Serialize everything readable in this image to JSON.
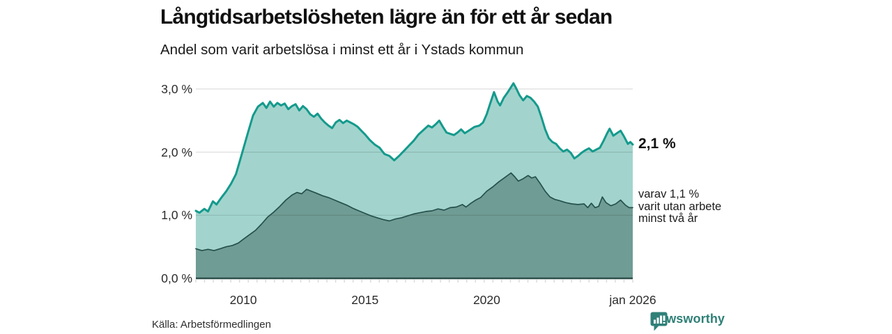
{
  "header": {
    "title": "Långtidsarbetslösheten lägre än för ett år sedan",
    "subtitle": "Andel som varit arbetslösa i minst ett år i Ystads kommun"
  },
  "annotations": {
    "end_value": "2,1 %",
    "note": "varav 1,1 %\nvarit utan arbete\nminst två år"
  },
  "footer": {
    "source": "Källa: Arbetsförmedlingen",
    "brand": "Newsworthy"
  },
  "colors": {
    "line_1yr": "#149a8c",
    "fill_1yr": "#a2d4cd",
    "line_2yr": "#26504c",
    "fill_2yr": "#6f9c94",
    "gridline": "rgba(0,0,0,0.13)",
    "axis_line": "#2e4f4b",
    "minor_tick": "#d9d9d9",
    "brand_teal": "#2f8077"
  },
  "chart_data": {
    "type": "area",
    "title": "Långtidsarbetslösheten lägre än för ett år sedan",
    "subtitle": "Andel som varit arbetslösa i minst ett år i Ystads kommun",
    "unit": "%",
    "grid": "horizontal",
    "legend_position": "right-annotations",
    "xlim": [
      2008.05,
      2026.0
    ],
    "ylim": [
      0,
      3.3
    ],
    "y_ticks": [
      {
        "value": 0,
        "label": "0,0 %"
      },
      {
        "value": 1,
        "label": "1,0 %"
      },
      {
        "value": 2,
        "label": "2,0 %"
      },
      {
        "value": 3,
        "label": "3,0 %"
      }
    ],
    "x_ticks": [
      {
        "value": 2010,
        "label": "2010"
      },
      {
        "value": 2015,
        "label": "2015"
      },
      {
        "value": 2020,
        "label": "2020"
      },
      {
        "value": 2026,
        "label": "jan 2026"
      }
    ],
    "series": [
      {
        "name": "Arbetslösa minst ett år",
        "end_label": "2,1 %",
        "end_value": 2.1,
        "color": "#149a8c",
        "fill": "#a2d4cd",
        "points": [
          [
            2008.05,
            1.07
          ],
          [
            2008.2,
            1.04
          ],
          [
            2008.4,
            1.1
          ],
          [
            2008.55,
            1.06
          ],
          [
            2008.75,
            1.22
          ],
          [
            2008.9,
            1.17
          ],
          [
            2009.1,
            1.28
          ],
          [
            2009.3,
            1.38
          ],
          [
            2009.5,
            1.5
          ],
          [
            2009.7,
            1.65
          ],
          [
            2009.85,
            1.85
          ],
          [
            2010.0,
            2.05
          ],
          [
            2010.2,
            2.32
          ],
          [
            2010.4,
            2.58
          ],
          [
            2010.6,
            2.72
          ],
          [
            2010.8,
            2.78
          ],
          [
            2010.95,
            2.7
          ],
          [
            2011.1,
            2.8
          ],
          [
            2011.25,
            2.72
          ],
          [
            2011.4,
            2.78
          ],
          [
            2011.55,
            2.74
          ],
          [
            2011.7,
            2.77
          ],
          [
            2011.85,
            2.68
          ],
          [
            2012.0,
            2.73
          ],
          [
            2012.15,
            2.76
          ],
          [
            2012.3,
            2.66
          ],
          [
            2012.45,
            2.73
          ],
          [
            2012.6,
            2.68
          ],
          [
            2012.75,
            2.6
          ],
          [
            2012.9,
            2.56
          ],
          [
            2013.05,
            2.61
          ],
          [
            2013.2,
            2.53
          ],
          [
            2013.35,
            2.47
          ],
          [
            2013.5,
            2.42
          ],
          [
            2013.65,
            2.38
          ],
          [
            2013.8,
            2.47
          ],
          [
            2013.95,
            2.51
          ],
          [
            2014.1,
            2.46
          ],
          [
            2014.25,
            2.5
          ],
          [
            2014.4,
            2.47
          ],
          [
            2014.55,
            2.44
          ],
          [
            2014.7,
            2.4
          ],
          [
            2014.85,
            2.34
          ],
          [
            2015.0,
            2.28
          ],
          [
            2015.2,
            2.19
          ],
          [
            2015.4,
            2.12
          ],
          [
            2015.6,
            2.07
          ],
          [
            2015.8,
            1.97
          ],
          [
            2016.0,
            1.94
          ],
          [
            2016.2,
            1.87
          ],
          [
            2016.4,
            1.94
          ],
          [
            2016.6,
            2.02
          ],
          [
            2016.8,
            2.1
          ],
          [
            2017.0,
            2.18
          ],
          [
            2017.2,
            2.28
          ],
          [
            2017.4,
            2.35
          ],
          [
            2017.6,
            2.42
          ],
          [
            2017.75,
            2.39
          ],
          [
            2017.9,
            2.44
          ],
          [
            2018.05,
            2.5
          ],
          [
            2018.2,
            2.4
          ],
          [
            2018.35,
            2.31
          ],
          [
            2018.5,
            2.29
          ],
          [
            2018.65,
            2.27
          ],
          [
            2018.8,
            2.31
          ],
          [
            2018.95,
            2.36
          ],
          [
            2019.1,
            2.3
          ],
          [
            2019.3,
            2.35
          ],
          [
            2019.5,
            2.4
          ],
          [
            2019.7,
            2.42
          ],
          [
            2019.85,
            2.47
          ],
          [
            2020.0,
            2.6
          ],
          [
            2020.15,
            2.78
          ],
          [
            2020.3,
            2.95
          ],
          [
            2020.45,
            2.8
          ],
          [
            2020.55,
            2.74
          ],
          [
            2020.7,
            2.86
          ],
          [
            2020.85,
            2.94
          ],
          [
            2021.0,
            3.03
          ],
          [
            2021.1,
            3.09
          ],
          [
            2021.2,
            3.02
          ],
          [
            2021.35,
            2.9
          ],
          [
            2021.5,
            2.82
          ],
          [
            2021.65,
            2.89
          ],
          [
            2021.8,
            2.86
          ],
          [
            2021.95,
            2.8
          ],
          [
            2022.1,
            2.72
          ],
          [
            2022.25,
            2.55
          ],
          [
            2022.4,
            2.36
          ],
          [
            2022.55,
            2.22
          ],
          [
            2022.7,
            2.16
          ],
          [
            2022.85,
            2.13
          ],
          [
            2023.0,
            2.06
          ],
          [
            2023.15,
            2.01
          ],
          [
            2023.3,
            2.04
          ],
          [
            2023.45,
            1.99
          ],
          [
            2023.6,
            1.9
          ],
          [
            2023.75,
            1.94
          ],
          [
            2023.9,
            1.99
          ],
          [
            2024.05,
            2.03
          ],
          [
            2024.2,
            2.06
          ],
          [
            2024.35,
            2.01
          ],
          [
            2024.5,
            2.04
          ],
          [
            2024.65,
            2.07
          ],
          [
            2024.8,
            2.18
          ],
          [
            2024.95,
            2.3
          ],
          [
            2025.05,
            2.37
          ],
          [
            2025.2,
            2.26
          ],
          [
            2025.35,
            2.3
          ],
          [
            2025.5,
            2.34
          ],
          [
            2025.65,
            2.24
          ],
          [
            2025.8,
            2.13
          ],
          [
            2025.9,
            2.16
          ],
          [
            2026.0,
            2.12
          ]
        ]
      },
      {
        "name": "Utan arbete minst två år",
        "end_label": "1,1 %",
        "end_value": 1.1,
        "color": "#26504c",
        "fill": "#6f9c94",
        "points": [
          [
            2008.05,
            0.47
          ],
          [
            2008.3,
            0.44
          ],
          [
            2008.55,
            0.46
          ],
          [
            2008.8,
            0.44
          ],
          [
            2009.05,
            0.47
          ],
          [
            2009.3,
            0.5
          ],
          [
            2009.55,
            0.52
          ],
          [
            2009.8,
            0.56
          ],
          [
            2010.0,
            0.62
          ],
          [
            2010.25,
            0.69
          ],
          [
            2010.5,
            0.76
          ],
          [
            2010.75,
            0.86
          ],
          [
            2011.0,
            0.97
          ],
          [
            2011.25,
            1.05
          ],
          [
            2011.5,
            1.14
          ],
          [
            2011.75,
            1.24
          ],
          [
            2012.0,
            1.32
          ],
          [
            2012.2,
            1.36
          ],
          [
            2012.4,
            1.34
          ],
          [
            2012.6,
            1.41
          ],
          [
            2012.8,
            1.38
          ],
          [
            2013.0,
            1.35
          ],
          [
            2013.25,
            1.31
          ],
          [
            2013.5,
            1.28
          ],
          [
            2013.75,
            1.24
          ],
          [
            2014.0,
            1.2
          ],
          [
            2014.25,
            1.16
          ],
          [
            2014.5,
            1.11
          ],
          [
            2014.75,
            1.07
          ],
          [
            2015.0,
            1.03
          ],
          [
            2015.25,
            0.99
          ],
          [
            2015.5,
            0.96
          ],
          [
            2015.75,
            0.93
          ],
          [
            2016.0,
            0.91
          ],
          [
            2016.25,
            0.94
          ],
          [
            2016.5,
            0.96
          ],
          [
            2016.75,
            0.99
          ],
          [
            2017.0,
            1.02
          ],
          [
            2017.25,
            1.04
          ],
          [
            2017.5,
            1.06
          ],
          [
            2017.75,
            1.07
          ],
          [
            2018.0,
            1.1
          ],
          [
            2018.25,
            1.08
          ],
          [
            2018.5,
            1.12
          ],
          [
            2018.75,
            1.13
          ],
          [
            2019.0,
            1.17
          ],
          [
            2019.15,
            1.13
          ],
          [
            2019.35,
            1.19
          ],
          [
            2019.55,
            1.24
          ],
          [
            2019.75,
            1.28
          ],
          [
            2020.0,
            1.38
          ],
          [
            2020.25,
            1.45
          ],
          [
            2020.5,
            1.53
          ],
          [
            2020.75,
            1.6
          ],
          [
            2021.0,
            1.67
          ],
          [
            2021.15,
            1.61
          ],
          [
            2021.3,
            1.54
          ],
          [
            2021.5,
            1.58
          ],
          [
            2021.7,
            1.63
          ],
          [
            2021.85,
            1.59
          ],
          [
            2022.0,
            1.61
          ],
          [
            2022.2,
            1.5
          ],
          [
            2022.4,
            1.38
          ],
          [
            2022.6,
            1.29
          ],
          [
            2022.8,
            1.25
          ],
          [
            2023.0,
            1.23
          ],
          [
            2023.25,
            1.2
          ],
          [
            2023.5,
            1.18
          ],
          [
            2023.75,
            1.17
          ],
          [
            2024.0,
            1.18
          ],
          [
            2024.15,
            1.12
          ],
          [
            2024.3,
            1.19
          ],
          [
            2024.45,
            1.12
          ],
          [
            2024.6,
            1.14
          ],
          [
            2024.75,
            1.29
          ],
          [
            2024.9,
            1.2
          ],
          [
            2025.1,
            1.15
          ],
          [
            2025.3,
            1.18
          ],
          [
            2025.5,
            1.24
          ],
          [
            2025.7,
            1.16
          ],
          [
            2025.85,
            1.12
          ],
          [
            2026.0,
            1.12
          ]
        ]
      }
    ]
  }
}
